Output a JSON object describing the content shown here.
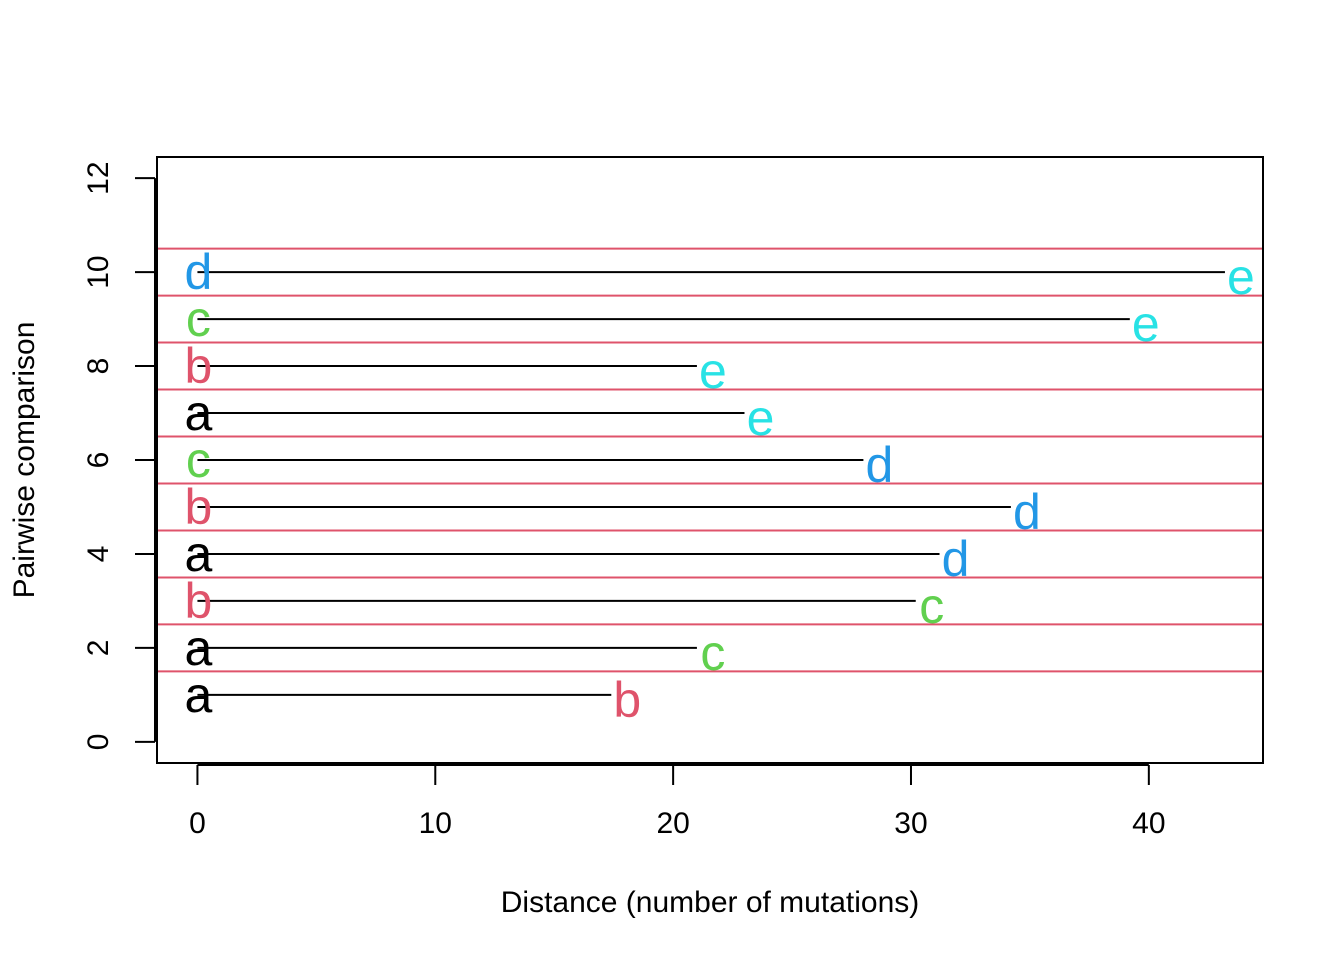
{
  "chart_data": {
    "type": "segment-dotplot",
    "xlabel": "Distance (number of mutations)",
    "ylabel": "Pairwise comparison",
    "xlim": [
      -1.7,
      44.8
    ],
    "ylim": [
      -0.45,
      12.45
    ],
    "x_ticks": [
      0,
      10,
      20,
      30,
      40
    ],
    "y_ticks": [
      0,
      2,
      4,
      6,
      8,
      10,
      12
    ],
    "grid": false,
    "separator_color": "#DF536B",
    "segment_color": "#000000",
    "separators_y": [
      1.5,
      2.5,
      3.5,
      4.5,
      5.5,
      6.5,
      7.5,
      8.5,
      9.5,
      10.5
    ],
    "label_colors": {
      "a": "#000000",
      "b": "#DF536B",
      "c": "#61D04F",
      "d": "#2297E6",
      "e": "#28E2E5"
    },
    "pairs": [
      {
        "y": 1,
        "from": "a",
        "to": "b",
        "distance": 17.4
      },
      {
        "y": 2,
        "from": "a",
        "to": "c",
        "distance": 21.0
      },
      {
        "y": 3,
        "from": "b",
        "to": "c",
        "distance": 30.2
      },
      {
        "y": 4,
        "from": "a",
        "to": "d",
        "distance": 31.2
      },
      {
        "y": 5,
        "from": "b",
        "to": "d",
        "distance": 34.2
      },
      {
        "y": 6,
        "from": "c",
        "to": "d",
        "distance": 28.0
      },
      {
        "y": 7,
        "from": "a",
        "to": "e",
        "distance": 23.0
      },
      {
        "y": 8,
        "from": "b",
        "to": "e",
        "distance": 21.0
      },
      {
        "y": 9,
        "from": "c",
        "to": "e",
        "distance": 39.2
      },
      {
        "y": 10,
        "from": "d",
        "to": "e",
        "distance": 43.2
      }
    ]
  }
}
